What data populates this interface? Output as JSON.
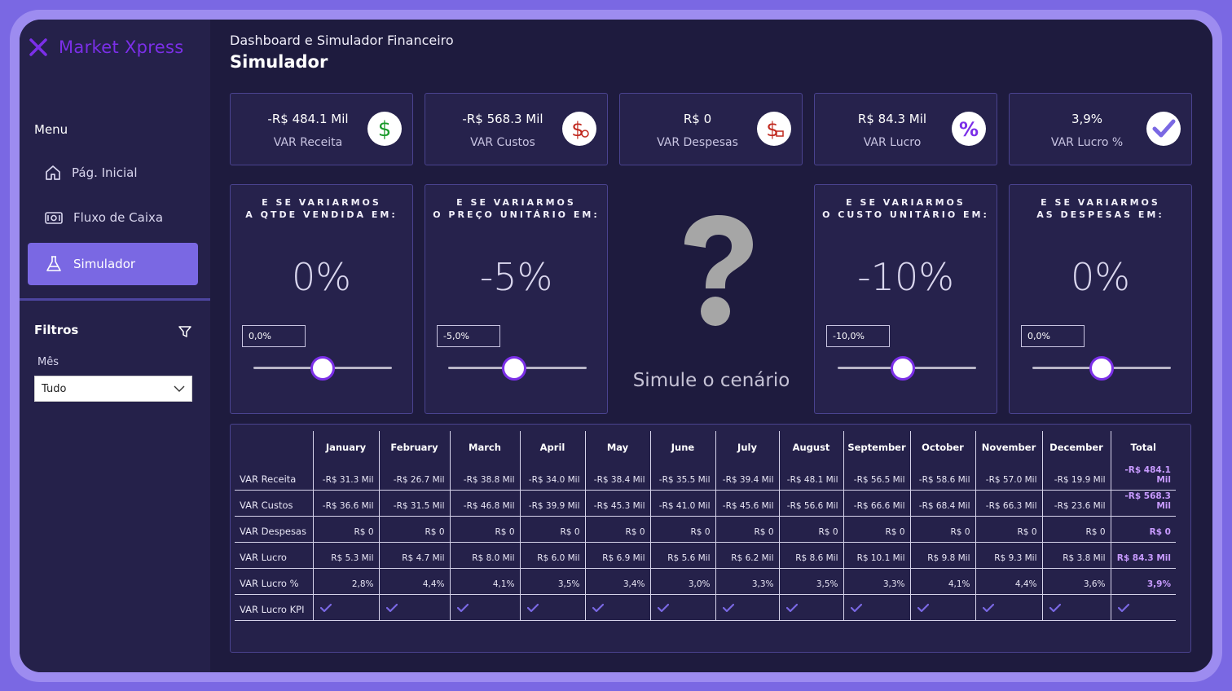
{
  "app": {
    "logo_text": "Market Xpress",
    "subtitle": "Dashboard e Simulador Financeiro",
    "title": "Simulador",
    "accent": "#7b2fe8"
  },
  "sidebar": {
    "menu_title": "Menu",
    "items": [
      {
        "label": "Pág. Inicial",
        "icon": "home-icon"
      },
      {
        "label": "Fluxo de Caixa",
        "icon": "cash-icon"
      },
      {
        "label": "Simulador",
        "icon": "flask-icon",
        "active": true
      }
    ],
    "filters_title": "Filtros",
    "month_label": "Mês",
    "month_value": "Tudo"
  },
  "kpis": [
    {
      "value": "-R$ 484.1 Mil",
      "label": "VAR Receita",
      "icon": "dollar-icon"
    },
    {
      "value": "-R$ 568.3 Mil",
      "label": "VAR Custos",
      "icon": "dollar-cost-icon"
    },
    {
      "value": "R$ 0",
      "label": "VAR Despesas",
      "icon": "dollar-expense-icon"
    },
    {
      "value": "R$ 84.3 Mil",
      "label": "VAR Lucro",
      "icon": "percent-icon"
    },
    {
      "value": "3,9%",
      "label": "VAR Lucro %",
      "icon": "check-icon"
    }
  ],
  "simulators": [
    {
      "title_line1": "E SE VARIARMOS",
      "title_line2": "A QTDE VENDIDA EM:",
      "value": "0%",
      "input": "0,0%",
      "level": 0.5
    },
    {
      "title_line1": "E SE VARIARMOS",
      "title_line2": "O PREÇO UNITÁRIO EM:",
      "value": "-5%",
      "input": "-5,0%",
      "level": 0.475
    },
    {
      "title_line1": "E SE VARIARMOS",
      "title_line2": "O CUSTO UNITÁRIO EM:",
      "value": "-10%",
      "input": "-10,0%",
      "level": 0.47
    },
    {
      "title_line1": "E SE VARIARMOS",
      "title_line2": "AS DESPESAS EM:",
      "value": "0%",
      "input": "0,0%",
      "level": 0.5
    }
  ],
  "center": {
    "text": "Simule o cenário"
  },
  "matrix": {
    "columns": [
      "January",
      "February",
      "March",
      "April",
      "May",
      "June",
      "July",
      "August",
      "September",
      "October",
      "November",
      "December",
      "Total"
    ],
    "rows": [
      {
        "label": "VAR Receita",
        "values": [
          "-R$ 31.3 Mil",
          "-R$ 26.7 Mil",
          "-R$ 38.8 Mil",
          "-R$ 34.0 Mil",
          "-R$ 38.4 Mil",
          "-R$ 35.5 Mil",
          "-R$ 39.4 Mil",
          "-R$ 48.1 Mil",
          "-R$ 56.5 Mil",
          "-R$ 58.6 Mil",
          "-R$ 57.0 Mil",
          "-R$ 19.9 Mil",
          "-R$ 484.1 Mil"
        ]
      },
      {
        "label": "VAR Custos",
        "values": [
          "-R$ 36.6 Mil",
          "-R$ 31.5 Mil",
          "-R$ 46.8 Mil",
          "-R$ 39.9 Mil",
          "-R$ 45.3 Mil",
          "-R$ 41.0 Mil",
          "-R$ 45.6 Mil",
          "-R$ 56.6 Mil",
          "-R$ 66.6 Mil",
          "-R$ 68.4 Mil",
          "-R$ 66.3 Mil",
          "-R$ 23.6 Mil",
          "-R$ 568.3 Mil"
        ]
      },
      {
        "label": "VAR Despesas",
        "values": [
          "R$ 0",
          "R$ 0",
          "R$ 0",
          "R$ 0",
          "R$ 0",
          "R$ 0",
          "R$ 0",
          "R$ 0",
          "R$ 0",
          "R$ 0",
          "R$ 0",
          "R$ 0",
          "R$ 0"
        ]
      },
      {
        "label": "VAR Lucro",
        "values": [
          "R$ 5.3 Mil",
          "R$ 4.7 Mil",
          "R$ 8.0 Mil",
          "R$ 6.0 Mil",
          "R$ 6.9 Mil",
          "R$ 5.6 Mil",
          "R$ 6.2 Mil",
          "R$ 8.6 Mil",
          "R$ 10.1 Mil",
          "R$ 9.8 Mil",
          "R$ 9.3 Mil",
          "R$ 3.8 Mil",
          "R$ 84.3 Mil"
        ]
      },
      {
        "label": "VAR Lucro %",
        "values": [
          "2,8%",
          "4,4%",
          "4,1%",
          "3,5%",
          "3,4%",
          "3,0%",
          "3,3%",
          "3,5%",
          "3,3%",
          "4,1%",
          "4,4%",
          "3,6%",
          "3,9%"
        ]
      },
      {
        "label": "VAR Lucro KPI",
        "check": true
      }
    ]
  }
}
